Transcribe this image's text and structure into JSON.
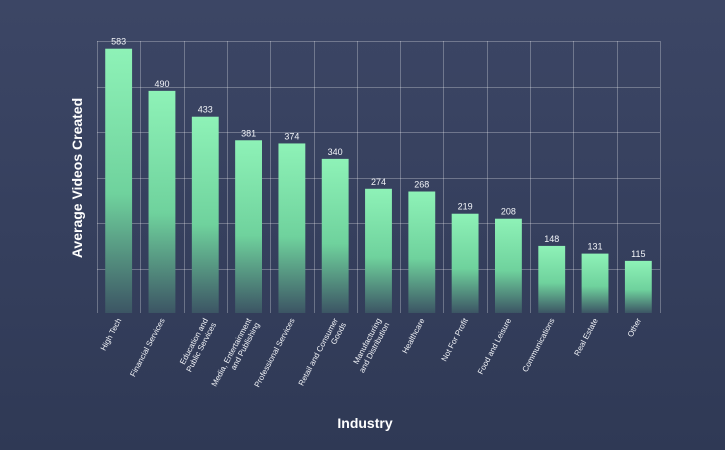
{
  "chart_data": {
    "type": "bar",
    "title": "",
    "xlabel": "Industry",
    "ylabel": "Average Videos Created",
    "ylim": [
      0,
      600
    ],
    "grid": true,
    "categories": [
      "High Tech",
      "Financial Services",
      "Education and\nPublic Services",
      "Media, Entertainment\nand Publishing",
      "Professional Services",
      "Retail and Consumer\nGoods",
      "Manufacturing\nand Distribution",
      "Healthcare",
      "Not For Profit",
      "Food and Leisure",
      "Communications",
      "Real Estate",
      "Other"
    ],
    "values": [
      583,
      490,
      433,
      381,
      374,
      340,
      274,
      268,
      219,
      208,
      148,
      131,
      115
    ],
    "colors": {
      "bar_top": "#8ef2b7",
      "bar_mid": "#6fd29d",
      "bar_bottom": "#3c5564"
    }
  }
}
